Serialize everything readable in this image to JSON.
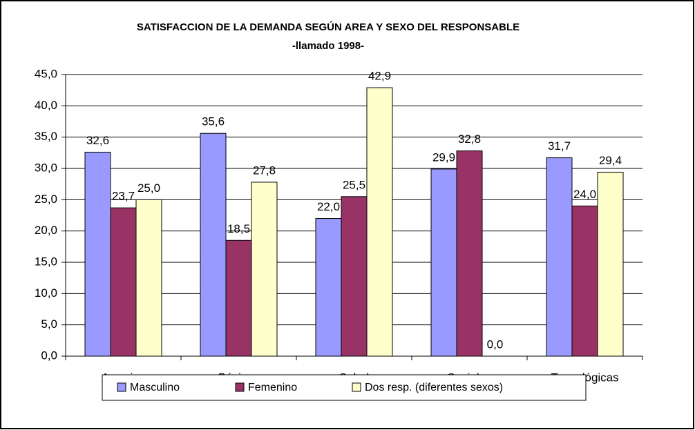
{
  "chart_data": {
    "type": "bar",
    "title": "SATISFACCION DE LA DEMANDA SEGÚN AREA Y SEXO DEL RESPONSABLE",
    "subtitle": "-llamado 1998-",
    "categories": [
      "Agrarias",
      "Básicas",
      "Salud",
      "Sociales",
      "Tecnológicas"
    ],
    "series": [
      {
        "name": "Masculino",
        "color": "#9999ff",
        "values": [
          32.6,
          35.6,
          22.0,
          29.9,
          31.7
        ],
        "value_labels": [
          "32,6",
          "35,6",
          "22,0",
          "29,9",
          "31,7"
        ]
      },
      {
        "name": "Femenino",
        "color": "#993366",
        "values": [
          23.7,
          18.5,
          25.5,
          32.8,
          24.0
        ],
        "value_labels": [
          "23,7",
          "18,5",
          "25,5",
          "32,8",
          "24,0"
        ]
      },
      {
        "name": "Dos resp. (diferentes sexos)",
        "color": "#ffffcc",
        "values": [
          25.0,
          27.8,
          42.9,
          0.0,
          29.4
        ],
        "value_labels": [
          "25,0",
          "27,8",
          "42,9",
          "0,0",
          "29,4"
        ]
      }
    ],
    "ylim": [
      0,
      45
    ],
    "yticks": [
      {
        "value": 0,
        "label": "0,0"
      },
      {
        "value": 5,
        "label": "5,0"
      },
      {
        "value": 10,
        "label": "10,0"
      },
      {
        "value": 15,
        "label": "15,0"
      },
      {
        "value": 20,
        "label": "20,0"
      },
      {
        "value": 25,
        "label": "25,0"
      },
      {
        "value": 30,
        "label": "30,0"
      },
      {
        "value": 35,
        "label": "35,0"
      },
      {
        "value": 40,
        "label": "40,0"
      },
      {
        "value": 45,
        "label": "45,0"
      }
    ],
    "grid": true,
    "legend": "bottom"
  }
}
